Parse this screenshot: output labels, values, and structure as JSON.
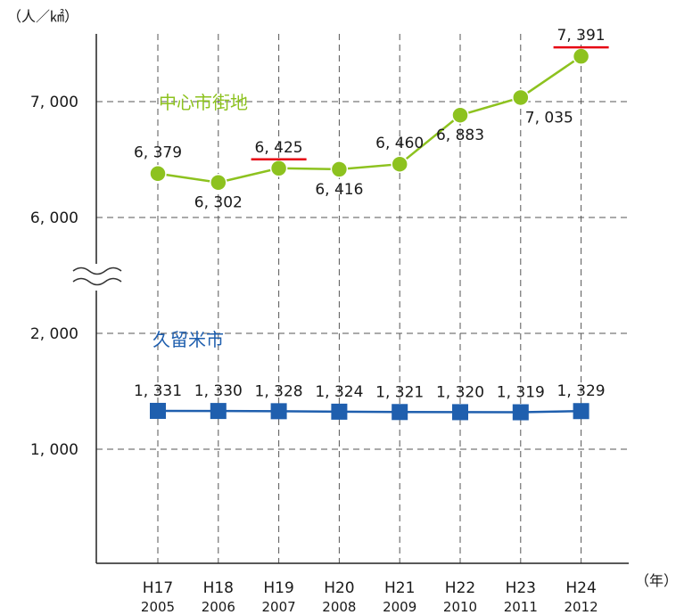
{
  "chart_data": {
    "type": "line",
    "ylabel": "（人／㎢）",
    "xlabel": "（年）",
    "categories": [
      "H17",
      "H18",
      "H19",
      "H20",
      "H21",
      "H22",
      "H23",
      "H24"
    ],
    "years": [
      "2005",
      "2006",
      "2007",
      "2008",
      "2009",
      "2010",
      "2011",
      "2012"
    ],
    "y_ticks": [
      "7, 000",
      "6, 000",
      "2, 000",
      "1, 000"
    ],
    "y_axis_break": true,
    "y_segments": [
      {
        "range": [
          5000,
          7700
        ],
        "ticks": [
          6000,
          7000
        ]
      },
      {
        "range": [
          0,
          2150
        ],
        "ticks": [
          1000,
          2000
        ]
      }
    ],
    "grid": true,
    "series": [
      {
        "name": "中心市街地",
        "color": "#8dc21f",
        "marker": "circle",
        "values": [
          6379,
          6302,
          6425,
          6416,
          6460,
          6883,
          7035,
          7391
        ],
        "labels": [
          "6, 379",
          "6, 302",
          "6, 425",
          "6, 416",
          "6, 460",
          "6, 883",
          "7, 035",
          "7, 391"
        ],
        "underlined": [
          2,
          7
        ]
      },
      {
        "name": "久留米市",
        "color": "#1f5fae",
        "marker": "square",
        "values": [
          1331,
          1330,
          1328,
          1324,
          1321,
          1320,
          1319,
          1329
        ],
        "labels": [
          "1, 331",
          "1, 330",
          "1, 328",
          "1, 324",
          "1, 321",
          "1, 320",
          "1, 319",
          "1, 329"
        ],
        "underlined": []
      }
    ],
    "highlight_color": "#e60012"
  }
}
